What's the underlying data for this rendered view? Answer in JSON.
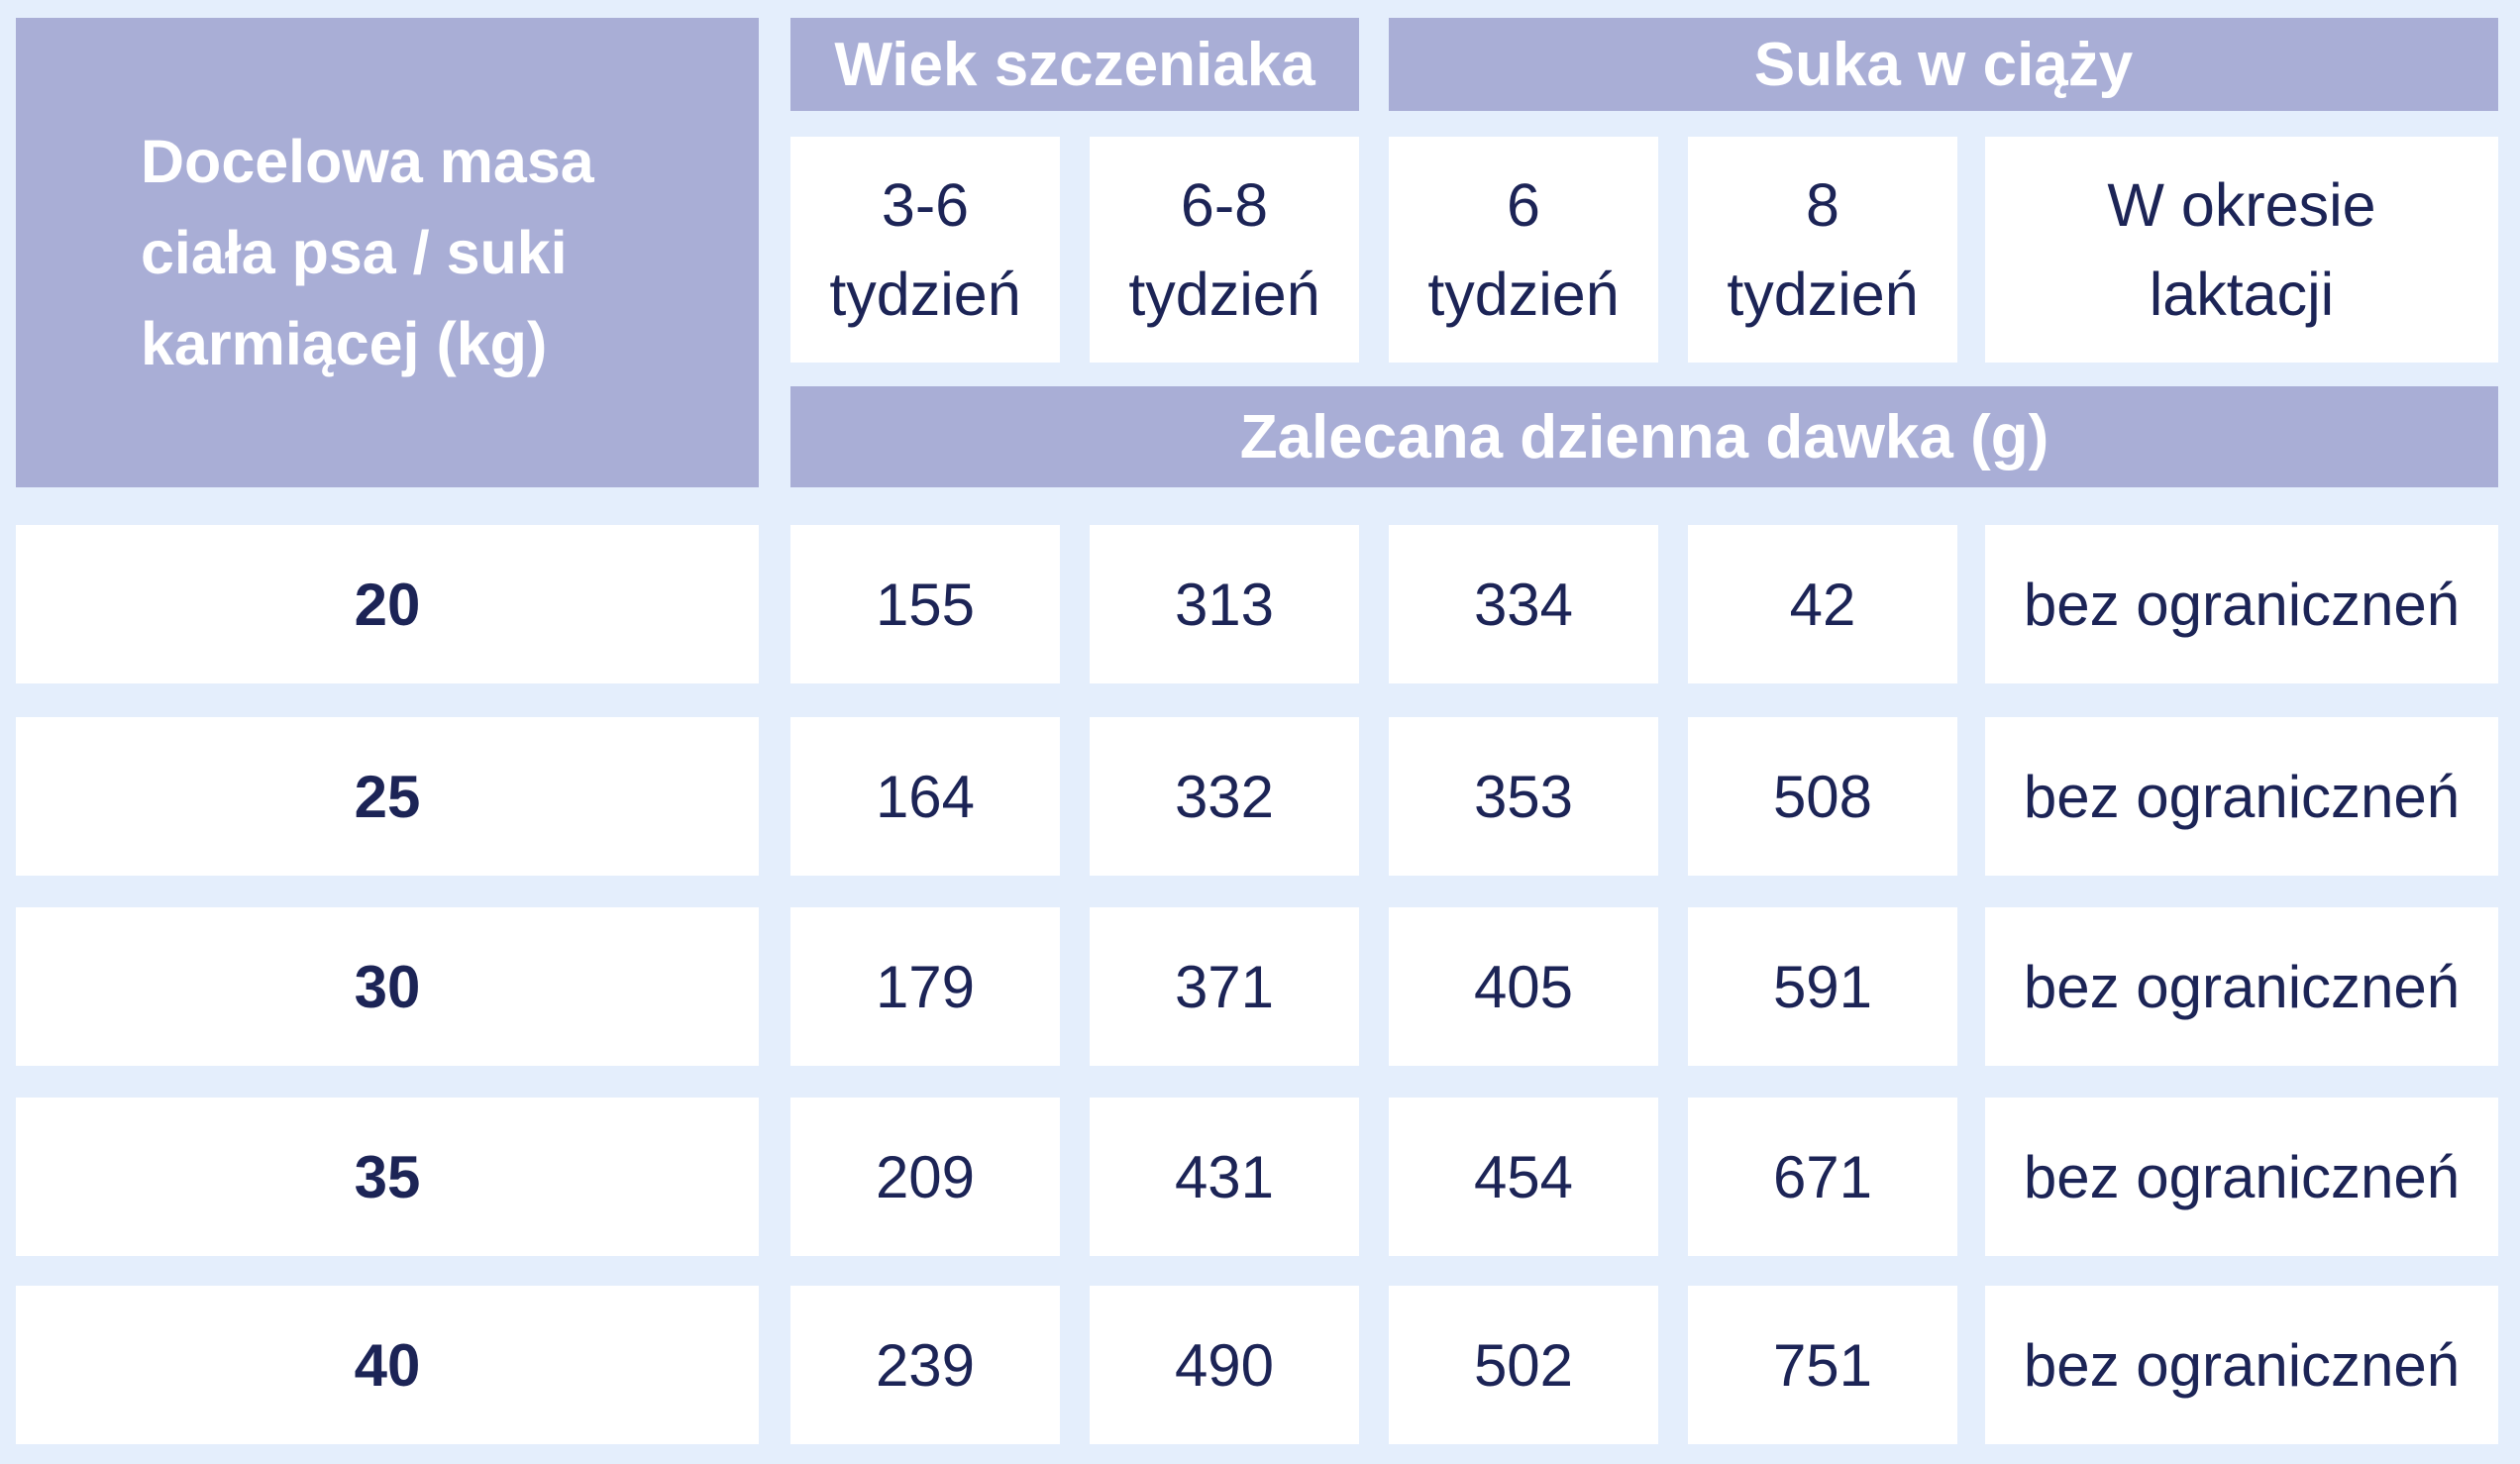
{
  "table": {
    "header_main": [
      "Docelowa masa",
      "ciała psa / suki",
      "karmiącej (kg)"
    ],
    "group_puppy": "Wiek szczeniaka",
    "group_pregnant": "Suka w ciąży",
    "sub_headers": [
      [
        "3-6",
        "tydzień"
      ],
      [
        "6-8",
        "tydzień"
      ],
      [
        "6",
        "tydzień"
      ],
      [
        "8",
        "tydzień"
      ],
      [
        "W okresie",
        "laktacji"
      ]
    ],
    "dose_header": "Zalecana dzienna dawka (g)",
    "rows": [
      {
        "mass": "20",
        "values": [
          "155",
          "313",
          "334",
          "42",
          "bez ograniczneń"
        ]
      },
      {
        "mass": "25",
        "values": [
          "164",
          "332",
          "353",
          "508",
          "bez ograniczneń"
        ]
      },
      {
        "mass": "30",
        "values": [
          "179",
          "371",
          "405",
          "591",
          "bez ograniczneń"
        ]
      },
      {
        "mass": "35",
        "values": [
          "209",
          "431",
          "454",
          "671",
          "bez ograniczneń"
        ]
      },
      {
        "mass": "40",
        "values": [
          "239",
          "490",
          "502",
          "751",
          "bez ograniczneń"
        ]
      }
    ]
  },
  "colors": {
    "background": "#e4eefc",
    "header_fill": "#a9aed6",
    "cell_fill": "#ffffff",
    "text_dark": "#1c2456"
  }
}
